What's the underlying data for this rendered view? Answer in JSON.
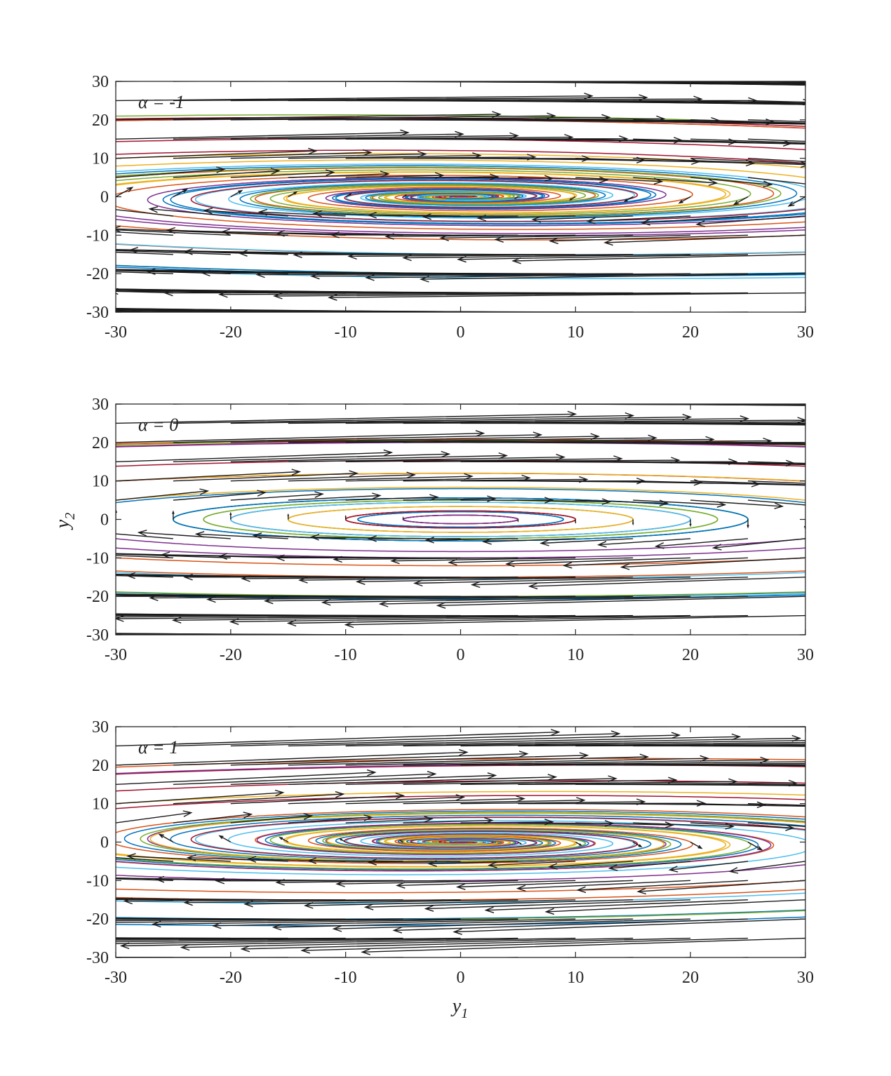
{
  "chart_data": {
    "type": "phase-portrait",
    "x": {
      "symbol": "y",
      "subscript": "1",
      "lim": [
        -30,
        30
      ],
      "ticks": [
        -30,
        -20,
        -10,
        0,
        10,
        20,
        30
      ]
    },
    "y": {
      "symbol": "y",
      "subscript": "2",
      "lim": [
        -30,
        30
      ],
      "ticks": [
        -30,
        -20,
        -10,
        0,
        10,
        20,
        30
      ]
    },
    "panels": [
      {
        "label": "α = -1",
        "alpha": -1
      },
      {
        "label": "α = 0",
        "alpha": 0
      },
      {
        "label": "α = 1",
        "alpha": 1
      }
    ],
    "field": {
      "a": 1,
      "b": 20
    },
    "quiver_grid": [
      -30,
      -25,
      -20,
      -15,
      -10,
      -5,
      0,
      5,
      10,
      15,
      20,
      25,
      30
    ],
    "trajectory_starts": [
      [
        0,
        2
      ],
      [
        5,
        0
      ],
      [
        10,
        0
      ],
      [
        -5,
        0
      ],
      [
        0,
        -5
      ],
      [
        15,
        0
      ],
      [
        -10,
        0
      ],
      [
        0,
        8
      ],
      [
        20,
        0
      ],
      [
        -15,
        0
      ],
      [
        0,
        -10
      ],
      [
        25,
        0
      ],
      [
        -20,
        0
      ],
      [
        0,
        12
      ],
      [
        -25,
        0
      ],
      [
        0,
        -15
      ],
      [
        30,
        5
      ],
      [
        -30,
        -5
      ],
      [
        20,
        20
      ],
      [
        -20,
        -20
      ],
      [
        10,
        20
      ],
      [
        -10,
        -20
      ],
      [
        30,
        -10
      ],
      [
        -30,
        10
      ],
      [
        0,
        20
      ],
      [
        0,
        -20
      ],
      [
        15,
        -15
      ],
      [
        -15,
        15
      ],
      [
        25,
        -20
      ],
      [
        -25,
        20
      ]
    ],
    "series_colors": [
      "#0072BD",
      "#D95319",
      "#EDB120",
      "#7E2F8E",
      "#77AC30",
      "#4DBEEE",
      "#A2142F"
    ],
    "arrow_color": "#1a1a1a"
  }
}
